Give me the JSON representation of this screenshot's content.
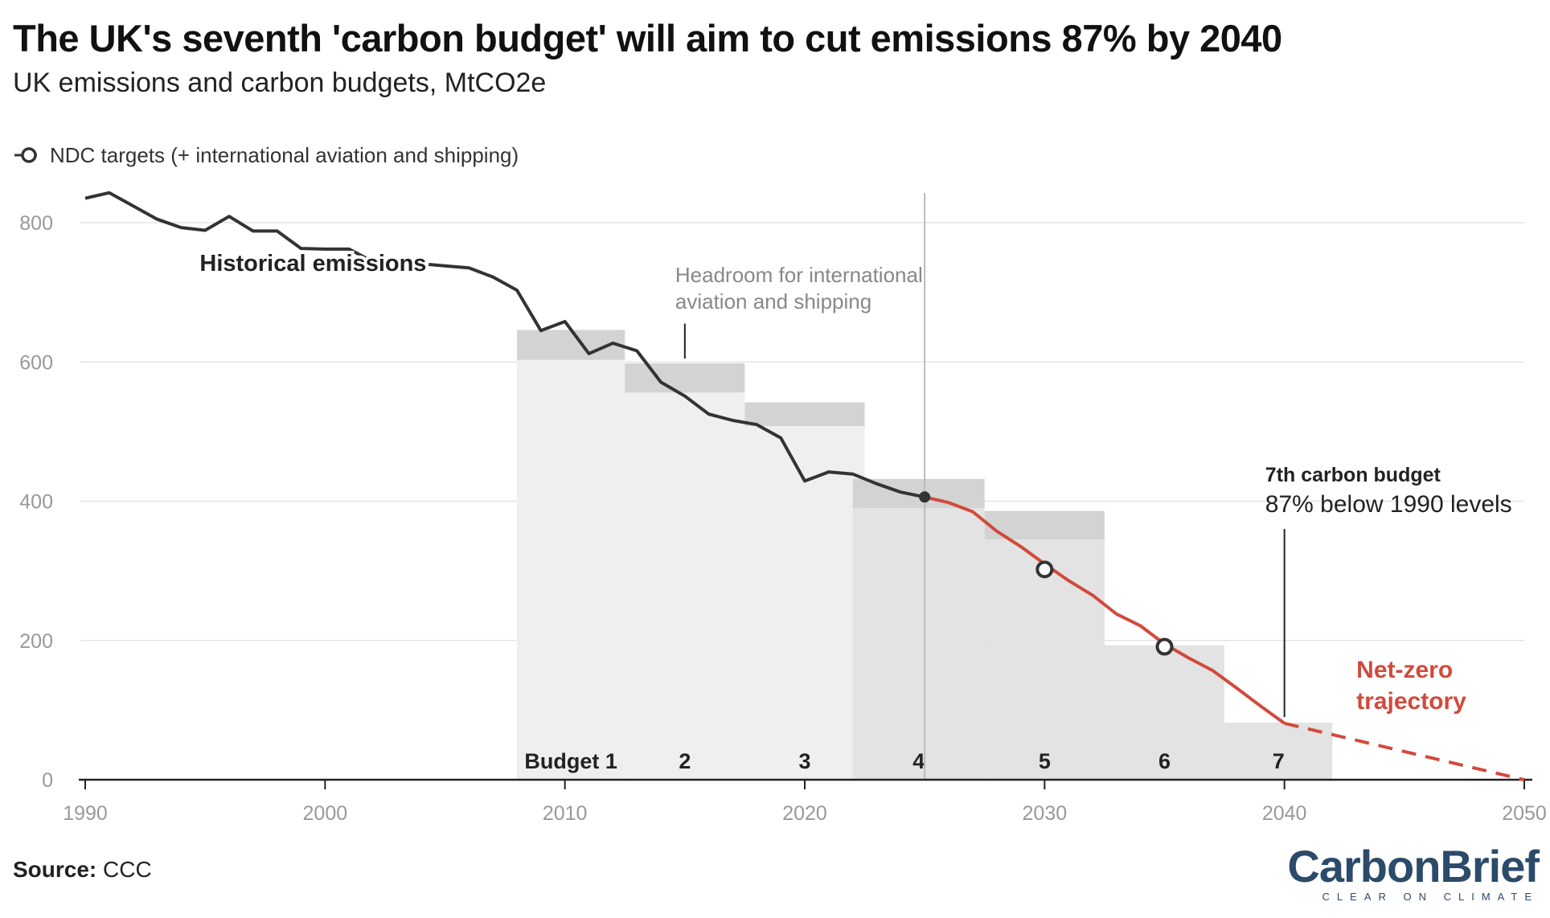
{
  "header": {
    "title": "The UK's seventh 'carbon budget' will aim to cut emissions 87% by 2040",
    "subtitle": "UK emissions and carbon budgets, MtCO2e"
  },
  "legend": {
    "ndc_label": "NDC targets (+ international aviation and shipping)"
  },
  "annotations": {
    "historical_label": "Historical emissions",
    "headroom_line1": "Headroom for international",
    "headroom_line2": "aviation and shipping",
    "cb7_title": "7th carbon budget",
    "cb7_detail": "87% below 1990 levels",
    "netzero_line1": "Net-zero",
    "netzero_line2": "trajectory"
  },
  "footer": {
    "source_label": "Source:",
    "source_value": "CCC"
  },
  "brand": {
    "logo": "CarbonBrief",
    "tagline": "CLEAR ON CLIMATE"
  },
  "colors": {
    "historical": "#333333",
    "trajectory": "#d14a3c",
    "budget_fill": "#efefef",
    "budget_fill_later": "#e3e3e3",
    "headroom": "#d3d3d3",
    "grid": "#e4e4e4",
    "axis_text": "#999999",
    "brand": "#2c4a6a"
  },
  "chart_data": {
    "type": "line",
    "xlim": [
      1990,
      2050
    ],
    "ylim": [
      0,
      800
    ],
    "x_ticks": [
      1990,
      2000,
      2010,
      2020,
      2030,
      2040,
      2050
    ],
    "y_ticks": [
      0,
      200,
      400,
      600,
      800
    ],
    "grid": true,
    "legend_position": "top-left",
    "series": [
      {
        "name": "Historical emissions",
        "x": [
          1990,
          1991,
          1992,
          1993,
          1994,
          1995,
          1996,
          1997,
          1998,
          1999,
          2000,
          2001,
          2002,
          2003,
          2004,
          2005,
          2006,
          2007,
          2008,
          2009,
          2010,
          2011,
          2012,
          2013,
          2014,
          2015,
          2016,
          2017,
          2018,
          2019,
          2020,
          2021,
          2022,
          2023,
          2024,
          2025
        ],
        "y": [
          835,
          843,
          824,
          805,
          793,
          789,
          809,
          788,
          788,
          763,
          762,
          762,
          744,
          744,
          741,
          738,
          735,
          722,
          703,
          645,
          658,
          612,
          627,
          616,
          571,
          551,
          525,
          516,
          510,
          491,
          429,
          442,
          439,
          425,
          413,
          406
        ]
      },
      {
        "name": "Net-zero trajectory",
        "x": [
          2025,
          2026,
          2027,
          2028,
          2029,
          2030,
          2031,
          2032,
          2033,
          2034,
          2035,
          2036,
          2037,
          2038,
          2039,
          2040
        ],
        "y": [
          406,
          398,
          385,
          357,
          335,
          310,
          286,
          265,
          238,
          221,
          195,
          175,
          157,
          132,
          106,
          81
        ]
      },
      {
        "name": "Net-zero trajectory (extension)",
        "x": [
          2040,
          2050
        ],
        "y": [
          81,
          0
        ]
      }
    ],
    "ndc_targets": [
      {
        "x": 2030,
        "y": 302
      },
      {
        "x": 2035,
        "y": 191
      }
    ],
    "current_point": {
      "x": 2025,
      "y": 406
    },
    "carbon_budgets": [
      {
        "label": "Budget 1",
        "start": 2008.0,
        "end": 2012.5,
        "budget": 603,
        "headroom_top": 646
      },
      {
        "label": "2",
        "start": 2012.5,
        "end": 2017.5,
        "budget": 556,
        "headroom_top": 598
      },
      {
        "label": "3",
        "start": 2017.5,
        "end": 2022.5,
        "budget": 508,
        "headroom_top": 542
      },
      {
        "label": "4",
        "start": 2022.0,
        "end": 2027.5,
        "budget": 390,
        "headroom_top": 432
      },
      {
        "label": "5",
        "start": 2027.5,
        "end": 2032.5,
        "budget": 345,
        "headroom_top": 386
      },
      {
        "label": "6",
        "start": 2032.5,
        "end": 2037.5,
        "budget": 193,
        "headroom_top": 193
      },
      {
        "label": "7",
        "start": 2037.5,
        "end": 2042.0,
        "budget": 82,
        "headroom_top": 82
      }
    ],
    "current_year_marker": 2025,
    "headroom_pointer": {
      "x": 2015,
      "y_from": 655,
      "y_to": 598
    },
    "cb7_pointer": {
      "x": 2040,
      "y_from": 360,
      "y_to": 90
    }
  }
}
